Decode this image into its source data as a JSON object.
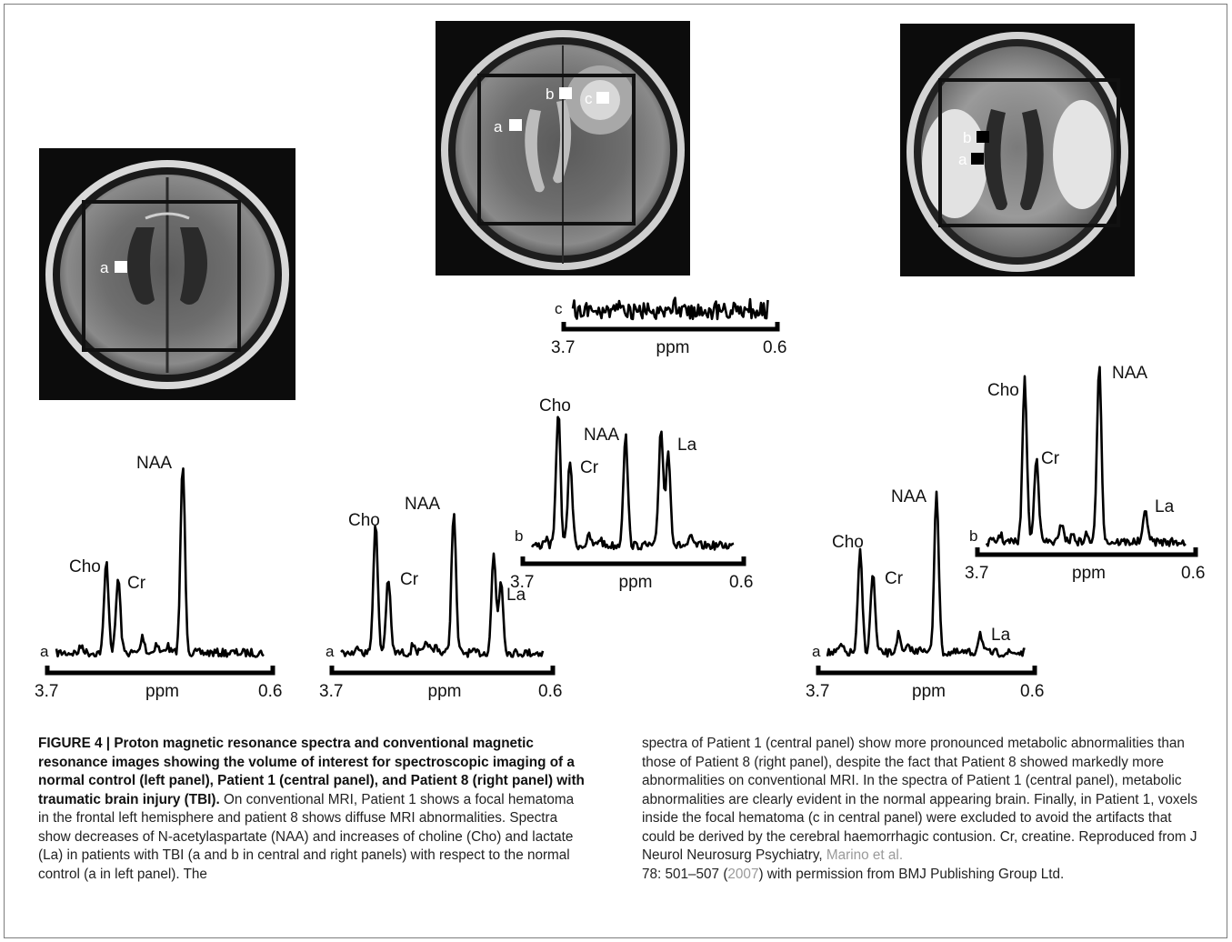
{
  "figure": {
    "scan_labels": {
      "control": [
        "a"
      ],
      "patient1": [
        "b",
        "c",
        "a"
      ],
      "patient8": [
        "b",
        "a"
      ]
    },
    "spectra": [
      {
        "id": "control-a",
        "label": "a",
        "axis_left": "3.7",
        "axis_mid": "ppm",
        "axis_right": "0.6",
        "peaks": [
          "Cho",
          "Cr",
          "NAA"
        ]
      },
      {
        "id": "p1-a",
        "label": "a",
        "axis_left": "3.7",
        "axis_mid": "ppm",
        "axis_right": "0.6",
        "peaks": [
          "Cho",
          "Cr",
          "NAA",
          "La"
        ]
      },
      {
        "id": "p1-b",
        "label": "b",
        "axis_left": "3.7",
        "axis_mid": "ppm",
        "axis_right": "0.6",
        "peaks": [
          "Cho",
          "Cr",
          "NAA",
          "La"
        ]
      },
      {
        "id": "p1-c",
        "label": "c",
        "axis_left": "3.7",
        "axis_mid": "ppm",
        "axis_right": "0.6",
        "peaks": []
      },
      {
        "id": "p8-a",
        "label": "a",
        "axis_left": "3.7",
        "axis_mid": "ppm",
        "axis_right": "0.6",
        "peaks": [
          "Cho",
          "Cr",
          "NAA",
          "La"
        ]
      },
      {
        "id": "p8-b",
        "label": "b",
        "axis_left": "3.7",
        "axis_mid": "ppm",
        "axis_right": "0.6",
        "peaks": [
          "Cho",
          "Cr",
          "NAA",
          "La"
        ]
      }
    ]
  },
  "caption": {
    "figure_label": "FIGURE 4 |",
    "title": "Proton magnetic resonance spectra and conventional magnetic resonance images showing the volume of interest for spectroscopic imaging of a normal control (left panel), Patient 1 (central panel), and Patient 8 (right panel) with traumatic brain injury (TBI).",
    "body_part1": "On conventional MRI, Patient 1 shows a focal hematoma in the frontal left hemisphere and patient 8 shows diffuse MRI abnormalities. Spectra show decreases of N-acetylaspartate (NAA) and increases of choline (Cho) and lactate (La) in patients with TBI (a and b in central and right panels) with respect to the normal control (a in left panel). The",
    "body_part2": "spectra of Patient 1 (central panel) show more pronounced metabolic abnormalities than those of Patient 8 (right panel), despite the fact that Patient 8 showed markedly more abnormalities on conventional MRI. In the spectra of Patient 1 (central panel), metabolic abnormalities are clearly evident in the normal appearing brain. Finally, in Patient 1, voxels inside the focal hematoma (c in central panel) were excluded to avoid the artifacts that could be derived by the cerebral haemorrhagic contusion. Cr, creatine. Reproduced from J Neurol Neurosurg Psychiatry,",
    "ref_author": "Marino et al.",
    "ref_mid": "78: 501–507 (",
    "ref_year": "2007",
    "ref_end": ") with permission from BMJ Publishing Group Ltd."
  }
}
